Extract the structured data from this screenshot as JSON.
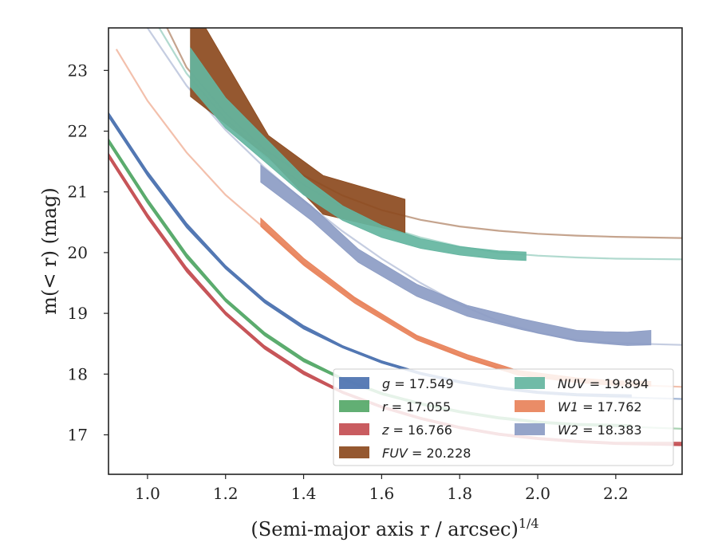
{
  "chart_data": {
    "type": "line",
    "xlabel": "(Semi-major axis r / arcsec)",
    "xlabel_exponent": "1/4",
    "ylabel": "m(< r) (mag)",
    "xlim": [
      0.9,
      2.37
    ],
    "ylim": [
      23.7,
      16.35
    ],
    "y_inverted": true,
    "grid": false,
    "legend_position": "lower-right",
    "x_ticks": [
      1.0,
      1.2,
      1.4,
      1.6,
      1.8,
      2.0,
      2.2
    ],
    "x_tick_labels": [
      "1.0",
      "1.2",
      "1.4",
      "1.6",
      "1.8",
      "2.0",
      "2.2"
    ],
    "y_ticks": [
      17,
      18,
      19,
      20,
      21,
      22,
      23
    ],
    "y_tick_labels": [
      "17",
      "18",
      "19",
      "20",
      "21",
      "22",
      "23"
    ],
    "series": [
      {
        "name": "g",
        "value": "17.549",
        "legend_text": "g = 17.549",
        "color": "#4c72b0",
        "model": {
          "x": [
            0.9,
            1.0,
            1.1,
            1.2,
            1.3,
            1.4,
            1.5,
            1.6,
            1.7,
            1.8,
            1.9,
            2.0,
            2.1,
            2.2,
            2.37
          ],
          "y": [
            22.27,
            21.3,
            20.45,
            19.76,
            19.2,
            18.77,
            18.45,
            18.2,
            18.01,
            17.87,
            17.77,
            17.7,
            17.65,
            17.62,
            17.59
          ]
        },
        "band": {
          "x": [
            0.9,
            1.0,
            1.1,
            1.2,
            1.3,
            1.4,
            1.5,
            1.6,
            1.7,
            1.8,
            1.9,
            2.0,
            2.1,
            2.24
          ],
          "y": [
            22.27,
            21.3,
            20.45,
            19.76,
            19.2,
            18.77,
            18.45,
            18.2,
            18.01,
            17.87,
            17.77,
            17.7,
            17.66,
            17.64
          ],
          "err": [
            0.04,
            0.04,
            0.04,
            0.03,
            0.03,
            0.03,
            0.02,
            0.02,
            0.02,
            0.02,
            0.02,
            0.02,
            0.02,
            0.02
          ]
        }
      },
      {
        "name": "r",
        "value": "17.055",
        "legend_text": "r = 17.055",
        "color": "#55a868",
        "model": {
          "x": [
            0.9,
            1.0,
            1.1,
            1.2,
            1.3,
            1.4,
            1.5,
            1.6,
            1.7,
            1.8,
            1.9,
            2.0,
            2.1,
            2.2,
            2.37
          ],
          "y": [
            21.84,
            20.85,
            19.95,
            19.22,
            18.66,
            18.23,
            17.92,
            17.68,
            17.51,
            17.38,
            17.28,
            17.21,
            17.17,
            17.14,
            17.1
          ]
        },
        "band": {
          "x": [
            0.9,
            1.0,
            1.1,
            1.2,
            1.3,
            1.4,
            1.5,
            1.6,
            1.7,
            1.8,
            1.9,
            2.0,
            2.1,
            2.24
          ],
          "y": [
            21.84,
            20.85,
            19.95,
            19.22,
            18.66,
            18.23,
            17.92,
            17.68,
            17.51,
            17.38,
            17.28,
            17.21,
            17.17,
            17.15
          ],
          "err": [
            0.04,
            0.04,
            0.04,
            0.03,
            0.03,
            0.03,
            0.02,
            0.02,
            0.02,
            0.02,
            0.02,
            0.02,
            0.02,
            0.02
          ]
        }
      },
      {
        "name": "z",
        "value": "16.766",
        "legend_text": "z = 16.766",
        "color": "#c44e52",
        "model": {
          "x": [
            0.9,
            1.0,
            1.1,
            1.2,
            1.3,
            1.4,
            1.5,
            1.6,
            1.7,
            1.8,
            1.9,
            2.0,
            2.1,
            2.2,
            2.37
          ],
          "y": [
            21.6,
            20.6,
            19.72,
            19.0,
            18.44,
            18.02,
            17.7,
            17.46,
            17.27,
            17.12,
            17.01,
            16.94,
            16.89,
            16.86,
            16.83
          ]
        },
        "band": {
          "x": [
            0.9,
            1.0,
            1.1,
            1.2,
            1.3,
            1.4,
            1.5,
            1.6,
            1.7,
            1.8,
            1.9,
            2.0,
            2.1,
            2.2,
            2.37
          ],
          "y": [
            21.6,
            20.6,
            19.72,
            19.0,
            18.44,
            18.02,
            17.7,
            17.46,
            17.27,
            17.12,
            17.01,
            16.94,
            16.89,
            16.86,
            16.85
          ],
          "err": [
            0.04,
            0.04,
            0.04,
            0.03,
            0.03,
            0.03,
            0.02,
            0.02,
            0.02,
            0.02,
            0.02,
            0.02,
            0.02,
            0.02,
            0.03
          ]
        }
      },
      {
        "name": "FUV",
        "value": "20.228",
        "legend_text": "FUV = 20.228",
        "color": "#8c4a1e",
        "model": {
          "x": [
            1.05,
            1.1,
            1.2,
            1.3,
            1.4,
            1.5,
            1.6,
            1.7,
            1.8,
            1.9,
            2.0,
            2.1,
            2.2,
            2.37
          ],
          "y": [
            23.7,
            23.05,
            22.3,
            21.7,
            21.27,
            20.94,
            20.7,
            20.54,
            20.43,
            20.36,
            20.31,
            20.28,
            20.26,
            20.24
          ]
        },
        "band": {
          "x": [
            1.11,
            1.31,
            1.45,
            1.66
          ],
          "y": [
            23.35,
            21.75,
            20.95,
            20.6
          ],
          "err": [
            0.78,
            0.18,
            0.32,
            0.28
          ]
        }
      },
      {
        "name": "NUV",
        "value": "19.894",
        "legend_text": "NUV = 19.894",
        "color": "#64b5a0",
        "model": {
          "x": [
            1.03,
            1.1,
            1.2,
            1.3,
            1.4,
            1.5,
            1.6,
            1.7,
            1.8,
            1.9,
            2.0,
            2.1,
            2.2,
            2.37
          ],
          "y": [
            23.7,
            22.95,
            22.2,
            21.6,
            21.12,
            20.74,
            20.45,
            20.25,
            20.1,
            20.0,
            19.95,
            19.92,
            19.9,
            19.89
          ]
        },
        "band": {
          "x": [
            1.11,
            1.2,
            1.3,
            1.4,
            1.5,
            1.6,
            1.7,
            1.8,
            1.9,
            1.97
          ],
          "y": [
            23.05,
            22.3,
            21.7,
            21.1,
            20.65,
            20.35,
            20.15,
            20.03,
            19.96,
            19.94
          ],
          "err": [
            0.32,
            0.25,
            0.2,
            0.15,
            0.12,
            0.1,
            0.08,
            0.07,
            0.07,
            0.07
          ]
        }
      },
      {
        "name": "W1",
        "value": "17.762",
        "legend_text": "W1 = 17.762",
        "color": "#e8825a",
        "model": {
          "x": [
            0.92,
            1.0,
            1.1,
            1.2,
            1.3,
            1.4,
            1.5,
            1.6,
            1.7,
            1.8,
            1.9,
            2.0,
            2.1,
            2.2,
            2.37
          ],
          "y": [
            23.35,
            22.5,
            21.65,
            20.95,
            20.4,
            19.82,
            19.38,
            18.95,
            18.58,
            18.3,
            18.1,
            17.97,
            17.88,
            17.83,
            17.79
          ]
        },
        "band": {
          "x": [
            1.29,
            1.4,
            1.53,
            1.69,
            1.82,
            1.95,
            2.1,
            2.2,
            2.29
          ],
          "y": [
            20.5,
            19.85,
            19.22,
            18.6,
            18.28,
            18.02,
            17.9,
            17.85,
            17.84
          ],
          "err": [
            0.07,
            0.06,
            0.05,
            0.04,
            0.04,
            0.04,
            0.04,
            0.04,
            0.04
          ]
        }
      },
      {
        "name": "W2",
        "value": "18.383",
        "legend_text": "W2 = 18.383",
        "color": "#8c9cc4",
        "model": {
          "x": [
            1.0,
            1.1,
            1.2,
            1.3,
            1.4,
            1.5,
            1.6,
            1.7,
            1.8,
            1.9,
            2.0,
            2.1,
            2.2,
            2.37
          ],
          "y": [
            23.7,
            22.75,
            22.02,
            21.4,
            20.85,
            20.35,
            19.9,
            19.5,
            19.15,
            18.87,
            18.68,
            18.56,
            18.51,
            18.48
          ]
        },
        "band": {
          "x": [
            1.29,
            1.42,
            1.54,
            1.69,
            1.82,
            1.96,
            2.1,
            2.17,
            2.23,
            2.29
          ],
          "y": [
            21.3,
            20.65,
            19.95,
            19.38,
            19.04,
            18.82,
            18.63,
            18.6,
            18.58,
            18.6
          ],
          "err": [
            0.14,
            0.12,
            0.11,
            0.1,
            0.09,
            0.09,
            0.09,
            0.1,
            0.11,
            0.12
          ]
        }
      }
    ],
    "legend": {
      "columns": [
        [
          "g",
          "r",
          "z",
          "FUV"
        ],
        [
          "NUV",
          "W1",
          "W2"
        ]
      ]
    }
  }
}
